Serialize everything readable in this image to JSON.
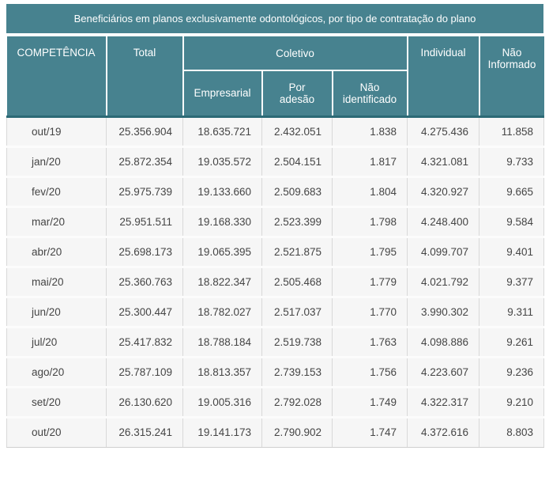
{
  "title": "Beneficiários em planos exclusivamente odontológicos, por tipo de contratação do plano",
  "colors": {
    "header_bg": "#47828F",
    "header_border_dark": "#2C6A76",
    "header_text": "#FFFFFF",
    "row_bg": "#F6F6F6",
    "grid_line": "#D9D9D9",
    "body_text": "#454545",
    "page_bg": "#FFFFFF"
  },
  "table": {
    "columns": {
      "competencia": "COMPETÊNCIA",
      "total": "Total",
      "coletivo": "Coletivo",
      "empresarial": "Empresarial",
      "por_adesao": "Por\nadesão",
      "nao_identificado": "Não\nidentificado",
      "individual": "Individual",
      "nao_informado": "Não\nInformado"
    },
    "fields": [
      "competencia",
      "total",
      "empresarial",
      "por_adesao",
      "nao_identificado",
      "individual",
      "nao_informado"
    ],
    "rows": [
      {
        "competencia": "out/19",
        "total": "25.356.904",
        "empresarial": "18.635.721",
        "por_adesao": "2.432.051",
        "nao_identificado": "1.838",
        "individual": "4.275.436",
        "nao_informado": "11.858"
      },
      {
        "competencia": "jan/20",
        "total": "25.872.354",
        "empresarial": "19.035.572",
        "por_adesao": "2.504.151",
        "nao_identificado": "1.817",
        "individual": "4.321.081",
        "nao_informado": "9.733"
      },
      {
        "competencia": "fev/20",
        "total": "25.975.739",
        "empresarial": "19.133.660",
        "por_adesao": "2.509.683",
        "nao_identificado": "1.804",
        "individual": "4.320.927",
        "nao_informado": "9.665"
      },
      {
        "competencia": "mar/20",
        "total": "25.951.511",
        "empresarial": "19.168.330",
        "por_adesao": "2.523.399",
        "nao_identificado": "1.798",
        "individual": "4.248.400",
        "nao_informado": "9.584"
      },
      {
        "competencia": "abr/20",
        "total": "25.698.173",
        "empresarial": "19.065.395",
        "por_adesao": "2.521.875",
        "nao_identificado": "1.795",
        "individual": "4.099.707",
        "nao_informado": "9.401"
      },
      {
        "competencia": "mai/20",
        "total": "25.360.763",
        "empresarial": "18.822.347",
        "por_adesao": "2.505.468",
        "nao_identificado": "1.779",
        "individual": "4.021.792",
        "nao_informado": "9.377"
      },
      {
        "competencia": "jun/20",
        "total": "25.300.447",
        "empresarial": "18.782.027",
        "por_adesao": "2.517.037",
        "nao_identificado": "1.770",
        "individual": "3.990.302",
        "nao_informado": "9.311"
      },
      {
        "competencia": "jul/20",
        "total": "25.417.832",
        "empresarial": "18.788.184",
        "por_adesao": "2.519.738",
        "nao_identificado": "1.763",
        "individual": "4.098.886",
        "nao_informado": "9.261"
      },
      {
        "competencia": "ago/20",
        "total": "25.787.109",
        "empresarial": "18.813.357",
        "por_adesao": "2.739.153",
        "nao_identificado": "1.756",
        "individual": "4.223.607",
        "nao_informado": "9.236"
      },
      {
        "competencia": "set/20",
        "total": "26.130.620",
        "empresarial": "19.005.316",
        "por_adesao": "2.792.028",
        "nao_identificado": "1.749",
        "individual": "4.322.317",
        "nao_informado": "9.210"
      },
      {
        "competencia": "out/20",
        "total": "26.315.241",
        "empresarial": "19.141.173",
        "por_adesao": "2.790.902",
        "nao_identificado": "1.747",
        "individual": "4.372.616",
        "nao_informado": "8.803"
      }
    ]
  },
  "chart_data": {
    "type": "table",
    "title": "Beneficiários em planos exclusivamente odontológicos, por tipo de contratação do plano",
    "categories": [
      "out/19",
      "jan/20",
      "fev/20",
      "mar/20",
      "abr/20",
      "mai/20",
      "jun/20",
      "jul/20",
      "ago/20",
      "set/20",
      "out/20"
    ],
    "series": [
      {
        "name": "Total",
        "values": [
          25356904,
          25872354,
          25975739,
          25951511,
          25698173,
          25360763,
          25300447,
          25417832,
          25787109,
          26130620,
          26315241
        ]
      },
      {
        "name": "Coletivo Empresarial",
        "values": [
          18635721,
          19035572,
          19133660,
          19168330,
          19065395,
          18822347,
          18782027,
          18788184,
          18813357,
          19005316,
          19141173
        ]
      },
      {
        "name": "Coletivo Por adesão",
        "values": [
          2432051,
          2504151,
          2509683,
          2523399,
          2521875,
          2505468,
          2517037,
          2519738,
          2739153,
          2792028,
          2790902
        ]
      },
      {
        "name": "Coletivo Não identificado",
        "values": [
          1838,
          1817,
          1804,
          1798,
          1795,
          1779,
          1770,
          1763,
          1756,
          1749,
          1747
        ]
      },
      {
        "name": "Individual",
        "values": [
          4275436,
          4321081,
          4320927,
          4248400,
          4099707,
          4021792,
          3990302,
          4098886,
          4223607,
          4322317,
          4372616
        ]
      },
      {
        "name": "Não Informado",
        "values": [
          11858,
          9733,
          9665,
          9584,
          9401,
          9377,
          9311,
          9261,
          9236,
          9210,
          8803
        ]
      }
    ]
  }
}
